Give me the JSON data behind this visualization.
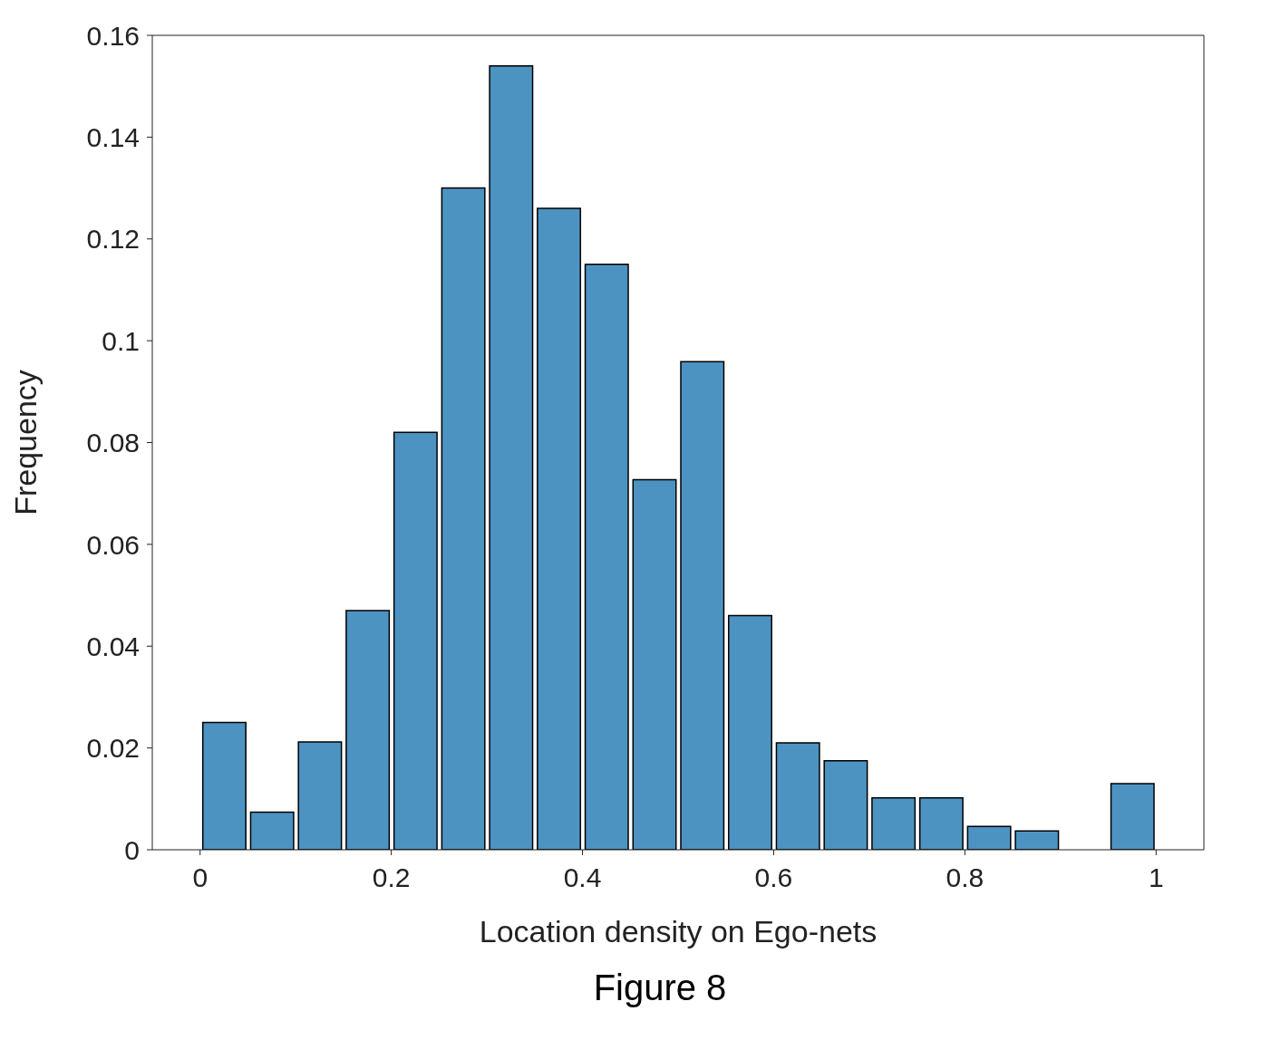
{
  "chart_data": {
    "type": "histogram",
    "xlabel": "Location density on Ego-nets",
    "ylabel": "Frequency",
    "annotations": [
      "Figure 8"
    ],
    "bins": [
      0,
      0.05,
      0.1,
      0.15,
      0.2,
      0.25,
      0.3,
      0.35,
      0.4,
      0.45,
      0.5,
      0.55,
      0.6,
      0.65,
      0.7,
      0.75,
      0.8,
      0.85,
      0.9,
      0.95,
      1
    ],
    "values": [
      0.025,
      0.0074,
      0.0212,
      0.047,
      0.082,
      0.13,
      0.154,
      0.126,
      0.115,
      0.0727,
      0.0959,
      0.046,
      0.021,
      0.0175,
      0.0102,
      0.0102,
      0.0046,
      0.0037,
      0,
      0.013
    ],
    "color": "#4d93c2",
    "xlim": [
      -0.05,
      1.05
    ],
    "xticks": [
      0,
      0.2,
      0.4,
      0.6,
      0.8,
      1
    ],
    "ylim": [
      0,
      0.16
    ],
    "yticks": [
      0,
      0.02,
      0.04,
      0.06,
      0.08,
      0.1,
      0.12,
      0.14,
      0.16
    ],
    "grid": false
  }
}
